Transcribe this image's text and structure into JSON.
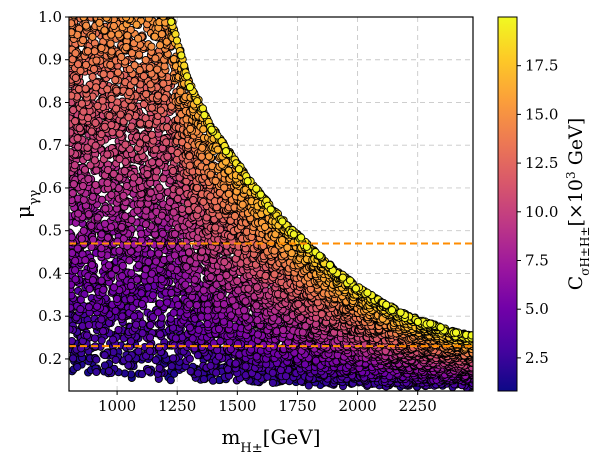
{
  "chart_data": {
    "type": "scatter",
    "xlabel": "m_{H±}[GeV]",
    "ylabel": "μ_{γγ}",
    "xlim": [
      800,
      2480
    ],
    "ylim": [
      0.125,
      1.0
    ],
    "xticks": [
      1000,
      1250,
      1500,
      1750,
      2000,
      2250
    ],
    "xtick_labels": [
      "1000",
      "1250",
      "1500",
      "1750",
      "2000",
      "2250"
    ],
    "yticks": [
      0.2,
      0.3,
      0.4,
      0.5,
      0.6,
      0.7,
      0.8,
      0.9,
      1.0
    ],
    "ytick_labels": [
      "0.2",
      "0.3",
      "0.4",
      "0.5",
      "0.6",
      "0.7",
      "0.8",
      "0.9",
      "1.0"
    ],
    "grid": true,
    "grid_style": "dashed",
    "hlines": [
      {
        "y": 0.47,
        "color": "#ff8c00",
        "style": "dashed"
      },
      {
        "y": 0.23,
        "color": "#ff8c00",
        "style": "dashed"
      }
    ],
    "colorbar": {
      "label": "C_{σH±H±}[×10^3 GeV]",
      "range": [
        0.8,
        20.0
      ],
      "ticks": [
        2.5,
        5.0,
        7.5,
        10.0,
        12.5,
        15.0,
        17.5
      ],
      "tick_labels": [
        "2.5",
        "5.0",
        "7.5",
        "10.0",
        "12.5",
        "15.0",
        "17.5"
      ],
      "colormap": "plasma"
    },
    "region": {
      "description_points_upper_boundary": [
        {
          "x": 1225,
          "y": 1.0
        },
        {
          "x": 1300,
          "y": 0.85
        },
        {
          "x": 1400,
          "y": 0.74
        },
        {
          "x": 1500,
          "y": 0.66
        },
        {
          "x": 1600,
          "y": 0.585
        },
        {
          "x": 1700,
          "y": 0.52
        },
        {
          "x": 1800,
          "y": 0.465
        },
        {
          "x": 1900,
          "y": 0.415
        },
        {
          "x": 2000,
          "y": 0.37
        },
        {
          "x": 2100,
          "y": 0.335
        },
        {
          "x": 2200,
          "y": 0.305
        },
        {
          "x": 2300,
          "y": 0.285
        },
        {
          "x": 2400,
          "y": 0.265
        },
        {
          "x": 2480,
          "y": 0.255
        }
      ],
      "lower_boundary": [
        {
          "x": 800,
          "y": 0.175
        },
        {
          "x": 1000,
          "y": 0.16
        },
        {
          "x": 1500,
          "y": 0.145
        },
        {
          "x": 2000,
          "y": 0.14
        },
        {
          "x": 2480,
          "y": 0.135
        }
      ],
      "marker": "circle",
      "marker_edgecolor": "#000000"
    }
  },
  "colors": {
    "plasma": [
      "#0d0887",
      "#46039f",
      "#7201a8",
      "#9c179e",
      "#bd3786",
      "#d8576b",
      "#ed7953",
      "#fb9f3a",
      "#fdca26",
      "#f0f921"
    ],
    "hline": "#ff8c00",
    "grid": "#c8c8c8"
  }
}
